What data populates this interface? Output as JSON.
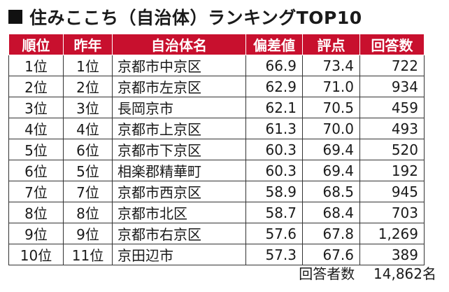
{
  "title": "住みここち（自治体）ランキングTOP10",
  "colors": {
    "header_bg": "#c8102e",
    "header_text": "#ffffff"
  },
  "headers": [
    "順位",
    "昨年",
    "自治体名",
    "偏差値",
    "評点",
    "回答数"
  ],
  "rows": [
    [
      "1位",
      "1位",
      "京都市中京区",
      "66.9",
      "73.4",
      "722"
    ],
    [
      "2位",
      "2位",
      "京都市左京区",
      "62.9",
      "71.0",
      "934"
    ],
    [
      "3位",
      "3位",
      "長岡京市",
      "62.1",
      "70.5",
      "459"
    ],
    [
      "4位",
      "4位",
      "京都市上京区",
      "61.3",
      "70.0",
      "493"
    ],
    [
      "5位",
      "6位",
      "京都市下京区",
      "60.3",
      "69.4",
      "520"
    ],
    [
      "6位",
      "5位",
      "相楽郡精華町",
      "60.3",
      "69.4",
      "192"
    ],
    [
      "7位",
      "7位",
      "京都市西京区",
      "58.9",
      "68.5",
      "945"
    ],
    [
      "8位",
      "8位",
      "京都市北区",
      "58.7",
      "68.4",
      "703"
    ],
    [
      "9位",
      "9位",
      "京都市右京区",
      "57.6",
      "67.8",
      "1,269"
    ],
    [
      "10位",
      "11位",
      "京田辺市",
      "57.3",
      "67.6",
      "389"
    ]
  ],
  "footer": {
    "label": "回答者数",
    "value": "14,862名"
  }
}
